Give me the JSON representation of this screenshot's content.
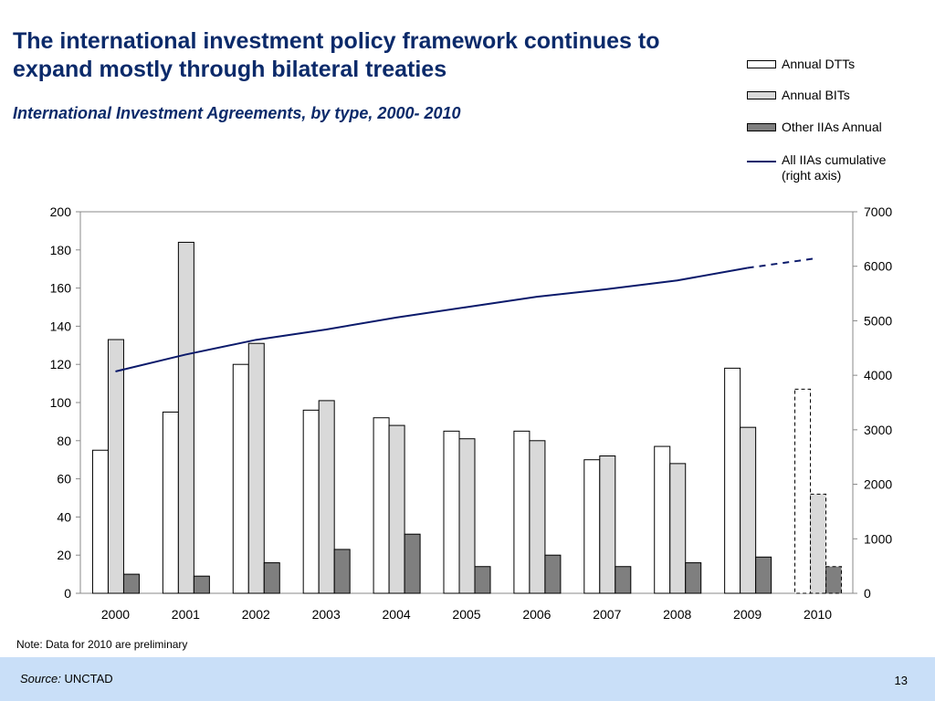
{
  "slide": {
    "title": "The international investment policy framework continues to expand mostly through bilateral treaties",
    "subtitle": "International Investment Agreements, by type, 2000- 2010",
    "note": "Note: Data for 2010 are preliminary",
    "source_label": "Source:",
    "source_value": "UNCTAD",
    "page_number": "13"
  },
  "chart_data": {
    "type": "bar",
    "categories": [
      "2000",
      "2001",
      "2002",
      "2003",
      "2004",
      "2005",
      "2006",
      "2007",
      "2008",
      "2009",
      "2010"
    ],
    "series": [
      {
        "name": "Annual DTTs",
        "type": "bar",
        "values": [
          75,
          95,
          120,
          96,
          92,
          85,
          85,
          70,
          77,
          118,
          107
        ],
        "color": "#ffffff"
      },
      {
        "name": "Annual BITs",
        "type": "bar",
        "values": [
          133,
          184,
          131,
          101,
          88,
          81,
          80,
          72,
          68,
          87,
          52
        ],
        "color": "#d9d9d9"
      },
      {
        "name": "Other IIAs Annual",
        "type": "bar",
        "values": [
          10,
          9,
          16,
          23,
          31,
          14,
          20,
          14,
          16,
          19,
          14
        ],
        "color": "#7f7f7f"
      },
      {
        "name": "All IIAs cumulative\n(right axis)",
        "type": "line",
        "axis": "right",
        "values": [
          4070,
          4380,
          4650,
          4840,
          5060,
          5250,
          5440,
          5580,
          5740,
          5970,
          6150
        ],
        "color": "#0b1a6b"
      }
    ],
    "y_left": {
      "min": 0,
      "max": 200,
      "ticks": [
        0,
        20,
        40,
        60,
        80,
        100,
        120,
        140,
        160,
        180,
        200
      ]
    },
    "y_right": {
      "min": 0,
      "max": 7000,
      "ticks": [
        0,
        1000,
        2000,
        3000,
        4000,
        5000,
        6000,
        7000
      ]
    },
    "preliminary_category": "2010",
    "grid": false,
    "legend_position": "top-right"
  },
  "legend": [
    {
      "label": "Annual DTTs",
      "kind": "box",
      "color": "#ffffff"
    },
    {
      "label": "Annual BITs",
      "kind": "box",
      "color": "#d9d9d9"
    },
    {
      "label": "Other IIAs Annual",
      "kind": "box",
      "color": "#7f7f7f"
    },
    {
      "label": "All IIAs cumulative (right axis)",
      "kind": "line",
      "color": "#0b1a6b"
    }
  ]
}
